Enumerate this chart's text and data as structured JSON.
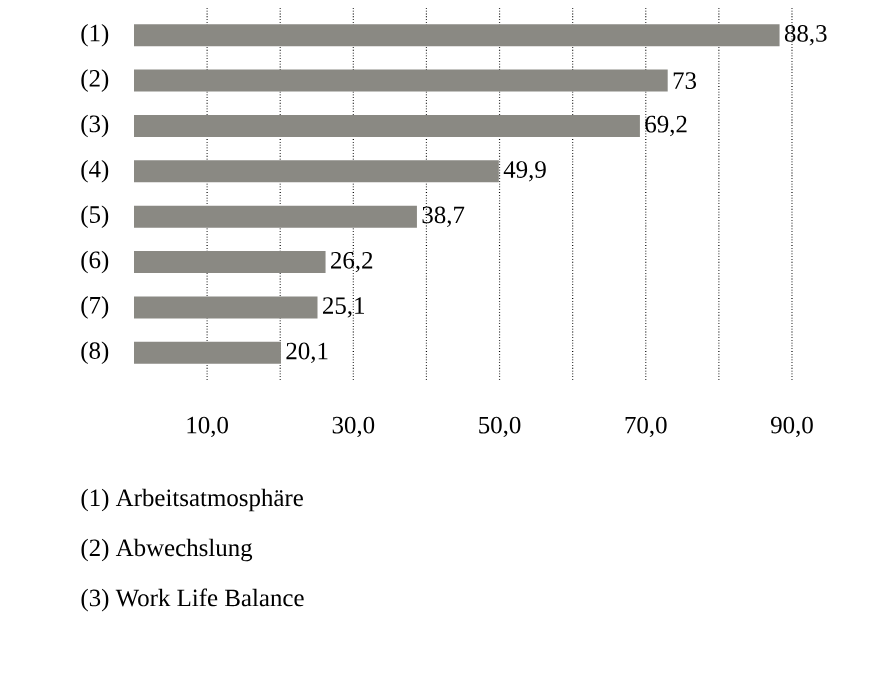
{
  "chart_data": {
    "type": "bar",
    "orientation": "horizontal",
    "categories": [
      "(1)",
      "(2)",
      "(3)",
      "(4)",
      "(5)",
      "(6)",
      "(7)",
      "(8)"
    ],
    "values": [
      88.3,
      73,
      69.2,
      49.9,
      38.7,
      26.2,
      25.1,
      20.1
    ],
    "value_labels": [
      "88,3",
      "73",
      "69,2",
      "49,9",
      "38,7",
      "26,2",
      "25,1",
      "20,1"
    ],
    "color": "#8a8983",
    "xlim": [
      0,
      90
    ],
    "xticks": [
      {
        "value": 10,
        "label": "10,0"
      },
      {
        "value": 20,
        "label": null
      },
      {
        "value": 30,
        "label": "30,0"
      },
      {
        "value": 40,
        "label": null
      },
      {
        "value": 50,
        "label": "50,0"
      },
      {
        "value": 60,
        "label": null
      },
      {
        "value": 70,
        "label": "70,0"
      },
      {
        "value": 80,
        "label": null
      },
      {
        "value": 90,
        "label": "90,0"
      }
    ],
    "grid": "x",
    "annotations": [
      "(1) Arbeitsatmosphäre",
      "(2) Abwechslung",
      "(3) Work Life Balance"
    ]
  }
}
